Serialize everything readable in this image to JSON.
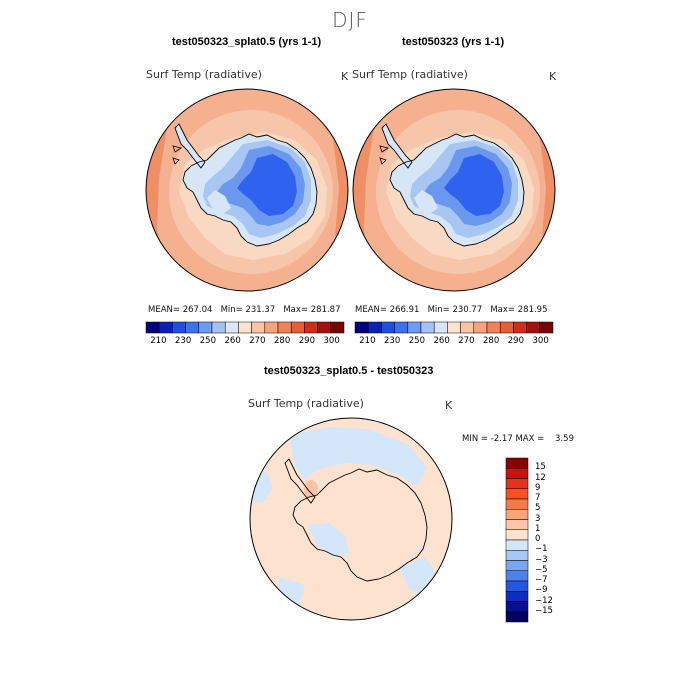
{
  "figure": {
    "season": "DJF"
  },
  "panels": [
    {
      "case_title": "test050323_splat0.5 (yrs 1-1)",
      "variable": "Surf Temp (radiative)",
      "units": "K",
      "stats": {
        "mean_label": "MEAN=",
        "mean": "267.04",
        "min_label": "Min=",
        "min": "231.37",
        "max_label": "Max=",
        "max": "281.87"
      }
    },
    {
      "case_title": "test050323 (yrs 1-1)",
      "variable": "Surf Temp (radiative)",
      "units": "K",
      "stats": {
        "mean_label": "MEAN=",
        "mean": "266.91",
        "min_label": "Min=",
        "min": "230.77",
        "max_label": "Max=",
        "max": "281.95"
      }
    }
  ],
  "absolute_colorbar": {
    "tick_labels": [
      "210",
      "230",
      "250",
      "260",
      "270",
      "280",
      "290",
      "300"
    ],
    "colors": [
      "#00007a",
      "#0a22b4",
      "#1f4fe0",
      "#3b73ee",
      "#6d9af2",
      "#a4c3f5",
      "#d8e6f8",
      "#fde2cd",
      "#fbc4a2",
      "#f7a37b",
      "#f2815a",
      "#e95b39",
      "#cf2e1c",
      "#a80e0e",
      "#7a0404"
    ]
  },
  "difference_panel": {
    "title": "test050323_splat0.5 - test050323",
    "variable": "Surf Temp (radiative)",
    "units": "K",
    "stats": {
      "min_label": "MIN =",
      "min": "-2.17",
      "max_label": "MAX =",
      "max": "3.59"
    }
  },
  "difference_colorbar": {
    "tick_labels": [
      "15",
      "12",
      "9",
      "7",
      "5",
      "3",
      "1",
      "0",
      "−1",
      "−3",
      "−5",
      "−7",
      "−9",
      "−12",
      "−15"
    ],
    "colors": [
      "#8b0000",
      "#c4140d",
      "#e3341b",
      "#f5521f",
      "#f47a48",
      "#f9a479",
      "#fbc7a6",
      "#fde3cf",
      "#d4e6fa",
      "#a7c8f3",
      "#7aa6ee",
      "#4d82e8",
      "#2357e2",
      "#0d2cc0",
      "#07108c",
      "#000060"
    ]
  },
  "map_colors": {
    "ocean_warm": "#f5b08f",
    "ocean_mid": "#f7c6aa",
    "ocean_pale": "#fad9c3",
    "edge_warm": "#ef8f66",
    "ice_pale": "#d6e6f7",
    "ice_light": "#a8c6f2",
    "ice_mid": "#6a98ee",
    "ice_deep": "#2f62ee",
    "diff_positive": "#fde3cf",
    "diff_negative": "#d4e6fa",
    "diff_warm_patch": "#f9c4a5"
  }
}
